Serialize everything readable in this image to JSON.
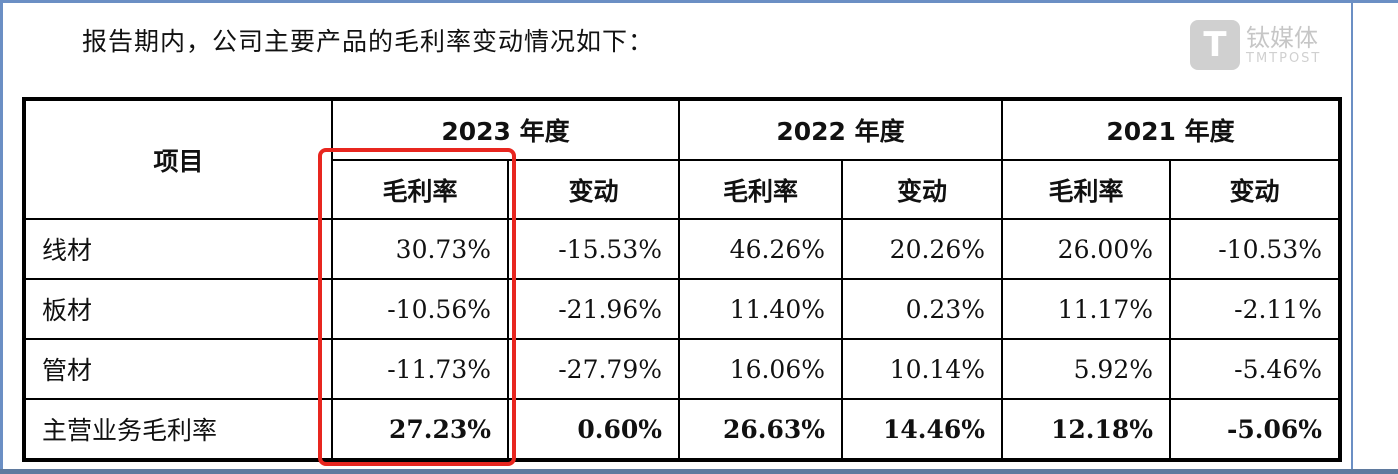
{
  "intro": "报告期内，公司主要产品的毛利率变动情况如下：",
  "table": {
    "item_header": "项目",
    "years": [
      "2023 年度",
      "2022 年度",
      "2021 年度"
    ],
    "sub_headers": [
      "毛利率",
      "变动"
    ],
    "rows": [
      {
        "label": "线材",
        "values": [
          "30.73%",
          "-15.53%",
          "46.26%",
          "20.26%",
          "26.00%",
          "-10.53%"
        ]
      },
      {
        "label": "板材",
        "values": [
          "-10.56%",
          "-21.96%",
          "11.40%",
          "0.23%",
          "11.17%",
          "-2.11%"
        ]
      },
      {
        "label": "管材",
        "values": [
          "-11.73%",
          "-27.79%",
          "16.06%",
          "10.14%",
          "5.92%",
          "-5.46%"
        ]
      },
      {
        "label": "主营业务毛利率",
        "values": [
          "27.23%",
          "0.60%",
          "26.63%",
          "14.46%",
          "12.18%",
          "-5.06%"
        ]
      }
    ]
  },
  "highlight_color": "#e8261f",
  "watermark": {
    "name": "钛媒体",
    "sub": "TMTPOST"
  }
}
